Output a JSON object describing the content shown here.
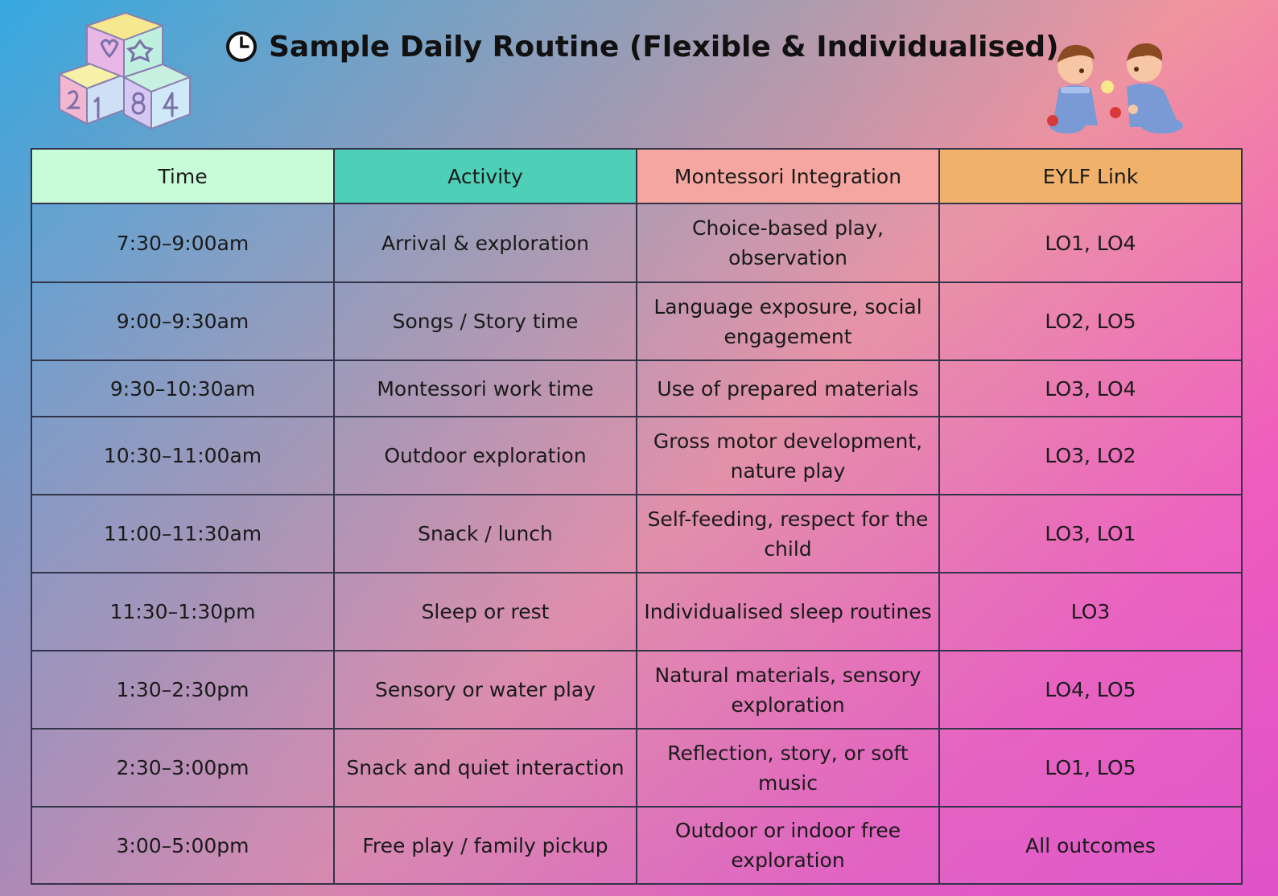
{
  "title": "Sample Daily Routine (Flexible & Individualised)",
  "icons": {
    "title_icon": "clock-icon",
    "left_decoration": "toy-blocks-illustration",
    "right_decoration": "children-playing-illustration"
  },
  "colors": {
    "header_time": "#c8fcd8",
    "header_activity": "#4dcfb8",
    "header_montessori": "#f6a6a0",
    "header_eylf": "#f0b26a"
  },
  "table": {
    "headers": [
      "Time",
      "Activity",
      "Montessori Integration",
      "EYLF Link"
    ],
    "rows": [
      {
        "time": "7:30–9:00am",
        "activity": "Arrival & exploration",
        "montessori": "Choice-based play, observation",
        "eylf": "LO1, LO4"
      },
      {
        "time": "9:00–9:30am",
        "activity": "Songs / Story time",
        "montessori": "Language exposure, social engagement",
        "eylf": "LO2, LO5"
      },
      {
        "time": "9:30–10:30am",
        "activity": "Montessori work time",
        "montessori": "Use of prepared materials",
        "eylf": "LO3, LO4"
      },
      {
        "time": "10:30–11:00am",
        "activity": "Outdoor exploration",
        "montessori": "Gross motor development, nature play",
        "eylf": "LO3, LO2"
      },
      {
        "time": "11:00–11:30am",
        "activity": "Snack / lunch",
        "montessori": "Self-feeding, respect for the child",
        "eylf": "LO3, LO1"
      },
      {
        "time": "11:30–1:30pm",
        "activity": "Sleep or rest",
        "montessori": "Individualised sleep routines",
        "eylf": "LO3"
      },
      {
        "time": "1:30–2:30pm",
        "activity": "Sensory or water play",
        "montessori": "Natural materials, sensory exploration",
        "eylf": "LO4, LO5"
      },
      {
        "time": "2:30–3:00pm",
        "activity": "Snack and quiet interaction",
        "montessori": "Reflection, story, or soft music",
        "eylf": "LO1, LO5"
      },
      {
        "time": "3:00–5:00pm",
        "activity": "Free play / family pickup",
        "montessori": "Outdoor or indoor free exploration",
        "eylf": "All outcomes"
      }
    ]
  }
}
